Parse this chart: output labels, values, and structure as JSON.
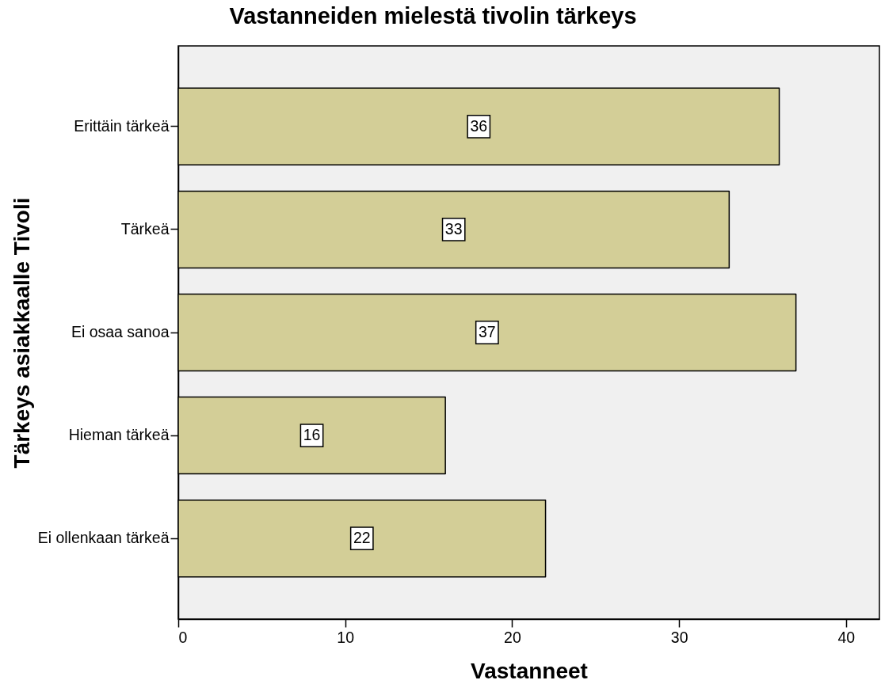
{
  "chart_data": {
    "type": "bar",
    "orientation": "horizontal",
    "title": "Vastanneiden mielestä tivolin tärkeys",
    "xlabel": "Vastanneet",
    "ylabel": "Tärkeys asiakkaalle Tivoli",
    "categories": [
      "Erittäin tärkeä",
      "Tärkeä",
      "Ei osaa sanoa",
      "Hieman tärkeä",
      "Ei ollenkaan tärkeä"
    ],
    "values": [
      36,
      33,
      37,
      16,
      22
    ],
    "color": "#d3ce97",
    "xlim": [
      0,
      42
    ],
    "xticks": [
      0,
      10,
      20,
      30,
      40
    ],
    "grid": false,
    "data_labels": true
  }
}
